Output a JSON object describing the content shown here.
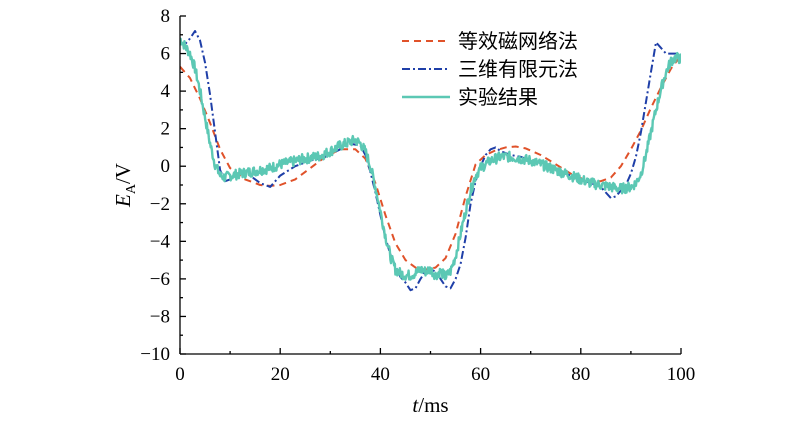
{
  "chart_data": {
    "type": "line",
    "xlabel": "t/ms",
    "xlabel_italic_part": "t",
    "xlabel_unit": "/ms",
    "ylabel": "E_A/V",
    "ylabel_main": "E",
    "ylabel_sub": "A",
    "ylabel_unit": "/V",
    "xlim": [
      0,
      100
    ],
    "ylim": [
      -10,
      8
    ],
    "x_ticks": [
      0,
      20,
      40,
      60,
      80,
      100
    ],
    "x_tick_labels": [
      "0",
      "20",
      "40",
      "60",
      "80",
      "100"
    ],
    "y_ticks": [
      8,
      6,
      4,
      2,
      0,
      -2,
      -4,
      -6,
      -8,
      -10
    ],
    "y_tick_labels": [
      "8",
      "6",
      "4",
      "2",
      "0",
      "−2",
      "−4",
      "−6",
      "−8",
      "−10"
    ],
    "grid": false,
    "legend_position": "top-right",
    "series": [
      {
        "name": "等效磁网络法",
        "color": "#e0522a",
        "style": "dashed",
        "x": [
          0,
          2,
          4,
          6,
          8,
          10,
          13,
          16,
          18,
          20,
          23,
          26,
          29,
          32,
          35,
          37,
          39,
          41,
          43,
          45,
          47,
          49,
          51,
          53,
          55,
          57,
          59,
          61,
          63,
          65,
          67,
          69,
          72,
          75,
          78,
          81,
          84,
          86,
          88,
          90,
          92,
          94,
          96,
          98,
          100
        ],
        "y": [
          5.3,
          4.7,
          3.6,
          2.3,
          0.9,
          -0.1,
          -0.7,
          -1.0,
          -1.05,
          -1.0,
          -0.7,
          -0.1,
          0.5,
          0.9,
          0.9,
          0.4,
          -0.9,
          -2.6,
          -4.1,
          -5.0,
          -5.4,
          -5.5,
          -5.4,
          -4.9,
          -3.6,
          -1.6,
          0.1,
          0.6,
          0.85,
          1.0,
          1.05,
          0.95,
          0.6,
          0.1,
          -0.4,
          -0.75,
          -0.8,
          -0.6,
          0.0,
          0.9,
          1.9,
          3.1,
          4.2,
          5.2,
          5.9
        ]
      },
      {
        "name": "三维有限元法",
        "color": "#1f3fa8",
        "style": "dashdot",
        "x": [
          0,
          1,
          2,
          3,
          4,
          5,
          6,
          7,
          8,
          9,
          10,
          12,
          14,
          16,
          18,
          20,
          23,
          26,
          29,
          32,
          34,
          36,
          37,
          38,
          39,
          40,
          41,
          42,
          43,
          44,
          45,
          46,
          47,
          48,
          49,
          50,
          51,
          52,
          53,
          54,
          55,
          56,
          57,
          58,
          59,
          60,
          61,
          62,
          63,
          64,
          66,
          68,
          70,
          73,
          76,
          79,
          82,
          84,
          85,
          86,
          87,
          88,
          89,
          90,
          91,
          92,
          93,
          94,
          95,
          96,
          97,
          98,
          99,
          100
        ],
        "y": [
          6.6,
          6.5,
          6.8,
          7.2,
          6.7,
          5.5,
          3.8,
          1.8,
          -0.2,
          -0.8,
          -0.7,
          -0.3,
          -0.5,
          -0.9,
          -1.1,
          -0.5,
          0.0,
          0.3,
          0.5,
          0.9,
          1.2,
          1.1,
          0.6,
          -0.3,
          -1.4,
          -2.6,
          -3.8,
          -4.7,
          -5.3,
          -5.9,
          -6.2,
          -6.6,
          -6.5,
          -6.0,
          -5.6,
          -5.5,
          -5.6,
          -6.0,
          -6.4,
          -6.5,
          -6.0,
          -5.2,
          -3.8,
          -2.0,
          -0.8,
          0.0,
          0.6,
          0.9,
          1.0,
          0.8,
          0.6,
          0.5,
          0.3,
          0.1,
          -0.3,
          -0.6,
          -0.9,
          -1.1,
          -1.4,
          -1.7,
          -1.6,
          -1.3,
          -1.0,
          -0.4,
          0.5,
          1.8,
          3.4,
          5.0,
          6.6,
          6.3,
          6.0,
          6.0,
          6.0,
          5.6
        ]
      },
      {
        "name": "实验结果",
        "color": "#5cc8b4",
        "style": "solid",
        "x": [
          0,
          1,
          2,
          3,
          4,
          5,
          6,
          7,
          8,
          9,
          10,
          12,
          14,
          16,
          18,
          20,
          22,
          24,
          26,
          28,
          30,
          32,
          34,
          35,
          36,
          37,
          38,
          39,
          40,
          41,
          42,
          43,
          44,
          45,
          46,
          47,
          48,
          49,
          50,
          51,
          52,
          53,
          54,
          55,
          56,
          57,
          58,
          59,
          60,
          62,
          64,
          66,
          68,
          70,
          72,
          74,
          76,
          78,
          80,
          82,
          84,
          86,
          88,
          90,
          91,
          92,
          93,
          94,
          95,
          96,
          97,
          98,
          99,
          100
        ],
        "y": [
          6.8,
          6.4,
          6.0,
          5.2,
          4.0,
          2.6,
          1.2,
          0.1,
          -0.5,
          -0.6,
          -0.5,
          -0.4,
          -0.3,
          -0.2,
          -0.1,
          0.1,
          0.2,
          0.35,
          0.45,
          0.55,
          0.8,
          1.1,
          1.3,
          1.4,
          1.2,
          0.8,
          0.0,
          -1.1,
          -2.4,
          -3.7,
          -4.8,
          -5.5,
          -5.7,
          -5.8,
          -5.8,
          -5.7,
          -5.5,
          -5.6,
          -5.5,
          -5.8,
          -5.6,
          -5.9,
          -5.6,
          -4.8,
          -3.6,
          -2.4,
          -1.3,
          -0.5,
          -0.1,
          0.3,
          0.5,
          0.5,
          0.4,
          0.3,
          0.1,
          -0.1,
          -0.3,
          -0.5,
          -0.7,
          -0.9,
          -1.0,
          -1.1,
          -1.2,
          -1.1,
          -0.9,
          -0.4,
          0.6,
          1.8,
          3.0,
          4.1,
          5.0,
          5.6,
          5.8,
          5.7
        ]
      }
    ]
  }
}
